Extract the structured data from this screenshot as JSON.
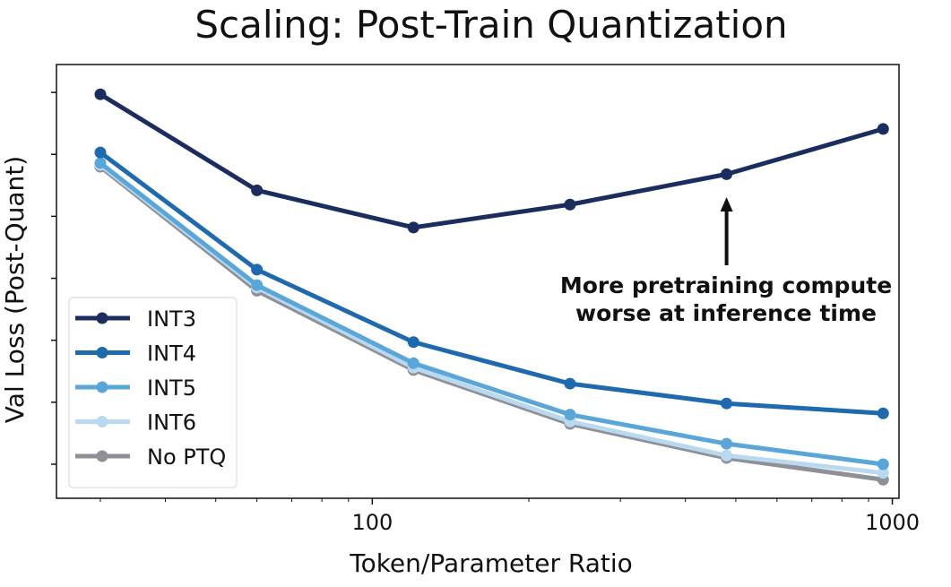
{
  "chart_data": {
    "type": "line",
    "title": "Scaling: Post-Train Quantization",
    "xlabel": "Token/Parameter Ratio",
    "ylabel": "Val Loss (Post-Quant)",
    "xscale": "log",
    "xlim": [
      24.7,
      1030
    ],
    "ylim": [
      0.45,
      7.45
    ],
    "xticks": [
      100,
      1000
    ],
    "xtick_labels": [
      "100",
      "1000"
    ],
    "yticks": [
      1,
      2,
      3,
      4,
      5,
      6,
      7
    ],
    "ytick_labels_shown": false,
    "grid": false,
    "legend_position": "lower-left",
    "x": [
      30,
      60,
      120,
      240,
      480,
      960
    ],
    "series": [
      {
        "name": "INT3",
        "color": "#1b2d5e",
        "values": [
          6.97,
          5.42,
          4.82,
          5.19,
          5.68,
          6.41
        ]
      },
      {
        "name": "INT4",
        "color": "#1f6aaf",
        "values": [
          6.03,
          4.14,
          2.97,
          2.3,
          1.98,
          1.82
        ]
      },
      {
        "name": "INT5",
        "color": "#5aa6d8",
        "values": [
          5.86,
          3.89,
          2.63,
          1.8,
          1.33,
          1.0
        ]
      },
      {
        "name": "INT6",
        "color": "#b9d9f0",
        "values": [
          5.83,
          3.85,
          2.56,
          1.69,
          1.14,
          0.86
        ]
      },
      {
        "name": "No PTQ",
        "color": "#8e9096",
        "values": [
          5.8,
          3.8,
          2.52,
          1.65,
          1.1,
          0.75
        ]
      }
    ],
    "annotation": {
      "lines": [
        "More pretraining compute",
        "worse at inference time"
      ],
      "arrow_to": {
        "x": 480,
        "y": 5.68
      }
    }
  }
}
